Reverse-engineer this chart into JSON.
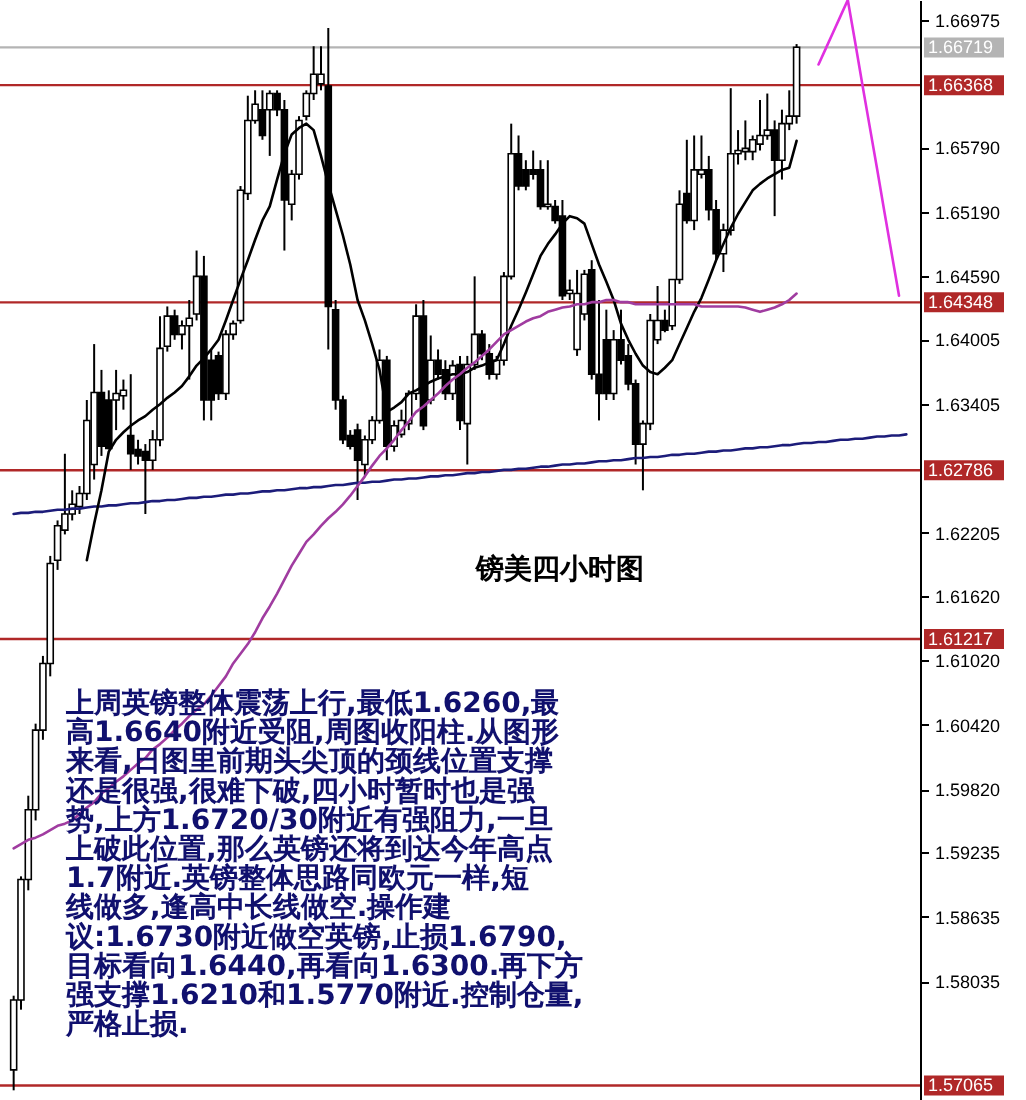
{
  "chart_data": {
    "type": "candlestick",
    "title": "镑美四小时图",
    "annotations": [
      "上周英镑整体震荡上行,最低1.6260,最",
      "高1.6640附近受阻,周图收阳柱.从图形",
      "来看,日图里前期头尖顶的颈线位置支撑",
      "还是很强,很难下破,四小时暂时也是强",
      "势,上方1.6720/30附近有强阻力,一旦",
      "上破此位置,那么英镑还将到达今年高点",
      "1.7附近.英镑整体思路同欧元一样,短",
      "线做多,逢高中长线做空.操作建",
      "议:1.6730附近做空英镑,止损1.6790,",
      "目标看向1.6440,再看向1.6300.再下方",
      "强支撑1.6210和1.5770附近.控制仓量,",
      "严格止损."
    ],
    "categories": [
      null,
      null,
      null,
      null,
      null,
      null,
      null,
      null,
      null,
      null,
      null,
      null,
      null,
      null,
      null,
      null,
      null,
      null,
      null,
      null,
      null,
      null,
      null,
      null,
      null,
      null,
      null,
      null,
      null,
      null,
      null,
      null,
      null,
      null,
      null,
      null,
      null,
      null,
      null,
      null,
      null,
      null,
      null,
      null,
      null,
      null,
      null,
      null,
      null,
      null,
      null,
      null,
      null,
      null,
      null,
      null,
      null,
      null,
      null,
      null,
      null,
      null,
      null,
      null,
      null,
      null,
      null,
      null,
      null,
      null,
      null,
      null,
      null,
      null,
      null,
      null,
      null,
      null,
      null,
      null,
      null,
      null,
      null,
      null,
      null,
      null,
      null,
      null,
      null,
      null,
      null,
      null,
      null,
      null,
      null,
      null,
      null,
      null,
      null,
      null,
      null,
      null,
      null,
      null,
      null,
      null,
      null,
      null,
      null,
      null,
      null,
      null,
      null,
      null,
      null,
      null,
      null,
      null,
      null,
      null,
      null,
      null,
      null
    ],
    "ohlc": [
      [
        1.5721,
        1.579,
        1.5702,
        1.5786
      ],
      [
        1.5786,
        1.5901,
        1.5777,
        1.5898
      ],
      [
        1.5898,
        1.5976,
        1.5888,
        1.5963
      ],
      [
        1.5963,
        1.6043,
        1.5953,
        1.6037
      ],
      [
        1.6037,
        1.6106,
        1.6028,
        1.6099
      ],
      [
        1.6099,
        1.6199,
        1.6087,
        1.6192
      ],
      [
        1.6195,
        1.6232,
        1.6186,
        1.6227
      ],
      [
        1.6223,
        1.6294,
        1.6219,
        1.6238
      ],
      [
        1.6238,
        1.626,
        1.6232,
        1.6247
      ],
      [
        1.6245,
        1.6264,
        1.6238,
        1.6257
      ],
      [
        1.6257,
        1.6344,
        1.6251,
        1.6325
      ],
      [
        1.6284,
        1.6396,
        1.627,
        1.6351
      ],
      [
        1.6351,
        1.6372,
        1.6292,
        1.6301
      ],
      [
        1.6344,
        1.6353,
        1.6298,
        1.6299
      ],
      [
        1.6344,
        1.6372,
        1.6316,
        1.635
      ],
      [
        1.6348,
        1.6363,
        1.6335,
        1.6353
      ],
      [
        1.6311,
        1.6368,
        1.6279,
        1.6294
      ],
      [
        1.6298,
        1.6307,
        1.6284,
        1.6292
      ],
      [
        1.6296,
        1.6303,
        1.6238,
        1.6288
      ],
      [
        1.6288,
        1.6316,
        1.6279,
        1.6307
      ],
      [
        1.6307,
        1.6422,
        1.6301,
        1.6392
      ],
      [
        1.6394,
        1.6431,
        1.6389,
        1.6422
      ],
      [
        1.6422,
        1.6428,
        1.64,
        1.6405
      ],
      [
        1.6405,
        1.6418,
        1.6391,
        1.6413
      ],
      [
        1.6413,
        1.6437,
        1.6363,
        1.642
      ],
      [
        1.6424,
        1.6483,
        1.6418,
        1.6459
      ],
      [
        1.6459,
        1.6478,
        1.6325,
        1.6344
      ],
      [
        1.6381,
        1.6391,
        1.6325,
        1.6344
      ],
      [
        1.6385,
        1.6389,
        1.6344,
        1.635
      ],
      [
        1.635,
        1.6409,
        1.6344,
        1.6405
      ],
      [
        1.6405,
        1.6418,
        1.64,
        1.6415
      ],
      [
        1.6418,
        1.6543,
        1.6415,
        1.6539
      ],
      [
        1.6536,
        1.6627,
        1.653,
        1.6604
      ],
      [
        1.6604,
        1.6632,
        1.6601,
        1.6619
      ],
      [
        1.6614,
        1.6632,
        1.6586,
        1.659
      ],
      [
        1.6614,
        1.6632,
        1.6571,
        1.6629
      ],
      [
        1.6629,
        1.6632,
        1.6608,
        1.6614
      ],
      [
        1.6614,
        1.6623,
        1.6483,
        1.653
      ],
      [
        1.6526,
        1.6558,
        1.6511,
        1.6554
      ],
      [
        1.6554,
        1.6608,
        1.6549,
        1.6604
      ],
      [
        1.6608,
        1.6632,
        1.6604,
        1.6629
      ],
      [
        1.6629,
        1.6673,
        1.6623,
        1.6647
      ],
      [
        1.6638,
        1.6673,
        1.6632,
        1.6647
      ],
      [
        1.6636,
        1.669,
        1.6391,
        1.6431
      ],
      [
        1.6428,
        1.6437,
        1.6335,
        1.6344
      ],
      [
        1.6344,
        1.6348,
        1.6303,
        1.6307
      ],
      [
        1.6311,
        1.6316,
        1.6298,
        1.6301
      ],
      [
        1.6316,
        1.6322,
        1.6251,
        1.6288
      ],
      [
        1.6284,
        1.6311,
        1.6273,
        1.6307
      ],
      [
        1.6307,
        1.6329,
        1.6303,
        1.6325
      ],
      [
        1.6325,
        1.6391,
        1.6322,
        1.6381
      ],
      [
        1.6381,
        1.6385,
        1.6288,
        1.6301
      ],
      [
        1.6301,
        1.6325,
        1.6296,
        1.632
      ],
      [
        1.6312,
        1.6335,
        1.6309,
        1.6325
      ],
      [
        1.6322,
        1.6353,
        1.6316,
        1.635
      ],
      [
        1.635,
        1.6433,
        1.6344,
        1.6422
      ],
      [
        1.6422,
        1.6437,
        1.6316,
        1.632
      ],
      [
        1.6344,
        1.6404,
        1.634,
        1.6381
      ],
      [
        1.6381,
        1.6391,
        1.6363,
        1.6368
      ],
      [
        1.6372,
        1.6381,
        1.6344,
        1.635
      ],
      [
        1.635,
        1.6381,
        1.6344,
        1.6376
      ],
      [
        1.6377,
        1.6385,
        1.6316,
        1.6325
      ],
      [
        1.6322,
        1.6385,
        1.6284,
        1.6377
      ],
      [
        1.6377,
        1.6459,
        1.6372,
        1.6405
      ],
      [
        1.6405,
        1.6409,
        1.6381,
        1.6387
      ],
      [
        1.6387,
        1.6396,
        1.6363,
        1.6368
      ],
      [
        1.6368,
        1.6385,
        1.6363,
        1.6381
      ],
      [
        1.6381,
        1.6463,
        1.6376,
        1.6459
      ],
      [
        1.6459,
        1.6601,
        1.6456,
        1.6573
      ],
      [
        1.6573,
        1.659,
        1.6539,
        1.6543
      ],
      [
        1.6558,
        1.6567,
        1.6539,
        1.6543
      ],
      [
        1.6558,
        1.6576,
        1.6549,
        1.6554
      ],
      [
        1.6558,
        1.6567,
        1.6521,
        1.6524
      ],
      [
        1.6524,
        1.6567,
        1.6521,
        1.6526
      ],
      [
        1.6524,
        1.653,
        1.6508,
        1.6511
      ],
      [
        1.6515,
        1.653,
        1.6437,
        1.6441
      ],
      [
        1.6443,
        1.6456,
        1.6437,
        1.6446
      ],
      [
        1.6391,
        1.6465,
        1.6385,
        1.6443
      ],
      [
        1.6424,
        1.6465,
        1.6418,
        1.6461
      ],
      [
        1.6465,
        1.6474,
        1.6363,
        1.6368
      ],
      [
        1.6368,
        1.6437,
        1.6325,
        1.635
      ],
      [
        1.64,
        1.6428,
        1.6344,
        1.635
      ],
      [
        1.635,
        1.6409,
        1.6344,
        1.64
      ],
      [
        1.64,
        1.6428,
        1.6377,
        1.6381
      ],
      [
        1.6385,
        1.6396,
        1.6353,
        1.6359
      ],
      [
        1.6359,
        1.6363,
        1.6284,
        1.6303
      ],
      [
        1.6303,
        1.6325,
        1.626,
        1.6322
      ],
      [
        1.6322,
        1.6424,
        1.6316,
        1.6418
      ],
      [
        1.64,
        1.645,
        1.6396,
        1.6418
      ],
      [
        1.6418,
        1.6428,
        1.6407,
        1.6409
      ],
      [
        1.6413,
        1.6456,
        1.6409,
        1.6456
      ],
      [
        1.6456,
        1.6539,
        1.6452,
        1.6526
      ],
      [
        1.6536,
        1.6586,
        1.6508,
        1.6511
      ],
      [
        1.6511,
        1.659,
        1.6502,
        1.6558
      ],
      [
        1.6554,
        1.659,
        1.655,
        1.6558
      ],
      [
        1.6558,
        1.6571,
        1.6511,
        1.6521
      ],
      [
        1.6521,
        1.653,
        1.6474,
        1.648
      ],
      [
        1.648,
        1.6508,
        1.6463,
        1.6502
      ],
      [
        1.6502,
        1.6634,
        1.6497,
        1.6573
      ],
      [
        1.6573,
        1.6595,
        1.6563,
        1.6576
      ],
      [
        1.6575,
        1.6604,
        1.6567,
        1.6578
      ],
      [
        1.6575,
        1.659,
        1.6567,
        1.6586
      ],
      [
        1.6582,
        1.6623,
        1.6576,
        1.659
      ],
      [
        1.659,
        1.6629,
        1.6586,
        1.6595
      ],
      [
        1.6595,
        1.6604,
        1.6515,
        1.6567
      ],
      [
        1.6567,
        1.6614,
        1.6549,
        1.6601
      ],
      [
        1.6601,
        1.6632,
        1.6595,
        1.6608
      ],
      [
        1.6608,
        1.6675,
        1.6601,
        1.6672
      ],
      null,
      null,
      null,
      null,
      null,
      null,
      null,
      null,
      null,
      null,
      null,
      null,
      null,
      null,
      null
    ],
    "series": [
      {
        "type": "line",
        "color": "#1c1c7a",
        "values": [
          1.6238,
          1.6239,
          1.6239,
          1.624,
          1.624,
          1.6241,
          1.6242,
          1.6242,
          1.6243,
          1.6243,
          1.6244,
          1.6245,
          1.6245,
          1.6246,
          1.6246,
          1.6247,
          1.6248,
          1.6248,
          1.6249,
          1.625,
          1.625,
          1.6251,
          1.6251,
          1.6252,
          1.6253,
          1.6253,
          1.6254,
          1.6254,
          1.6255,
          1.6256,
          1.6256,
          1.6257,
          1.6257,
          1.6258,
          1.6259,
          1.6259,
          1.626,
          1.626,
          1.6261,
          1.6262,
          1.6262,
          1.6263,
          1.6263,
          1.6264,
          1.6265,
          1.6265,
          1.6266,
          1.6267,
          1.6267,
          1.6268,
          1.6268,
          1.6269,
          1.627,
          1.627,
          1.6271,
          1.6271,
          1.6272,
          1.6273,
          1.6273,
          1.6274,
          1.6274,
          1.6275,
          1.6276,
          1.6276,
          1.6277,
          1.6277,
          1.6278,
          1.6279,
          1.6279,
          1.628,
          1.628,
          1.6281,
          1.6282,
          1.6282,
          1.6283,
          1.6284,
          1.6284,
          1.6285,
          1.6285,
          1.6286,
          1.6287,
          1.6287,
          1.6288,
          1.6288,
          1.6289,
          1.629,
          1.629,
          1.6291,
          1.6291,
          1.6292,
          1.6293,
          1.6293,
          1.6294,
          1.6294,
          1.6295,
          1.6296,
          1.6296,
          1.6297,
          1.6297,
          1.6298,
          1.6299,
          1.6299,
          1.63,
          1.63,
          1.6301,
          1.6302,
          1.6302,
          1.6303,
          1.6304,
          1.6304,
          1.6305,
          1.6305,
          1.6306,
          1.6307,
          1.6307,
          1.6308,
          1.6308,
          1.6309,
          1.631,
          1.631,
          1.6311,
          1.6311,
          1.6312
        ]
      },
      {
        "type": "line",
        "color": "#000000",
        "values": [
          null,
          null,
          null,
          null,
          null,
          null,
          null,
          null,
          null,
          null,
          1.6195,
          1.6229,
          1.626,
          1.6296,
          1.6307,
          1.6314,
          1.632,
          1.6325,
          1.6329,
          1.6335,
          1.634,
          1.6346,
          1.6351,
          1.6357,
          1.6366,
          1.6376,
          1.6383,
          1.6391,
          1.64,
          1.6418,
          1.6437,
          1.6456,
          1.6474,
          1.6493,
          1.6511,
          1.6524,
          1.6549,
          1.6573,
          1.6591,
          1.6597,
          1.6601,
          1.6595,
          1.6571,
          1.6545,
          1.6521,
          1.6497,
          1.647,
          1.6437,
          1.6418,
          1.6396,
          1.6372,
          1.6333,
          1.6337,
          1.6342,
          1.635,
          1.6353,
          1.6357,
          1.6361,
          1.6364,
          1.6366,
          1.6368,
          1.6368,
          1.637,
          1.6374,
          1.6376,
          1.6379,
          1.6381,
          1.6396,
          1.6413,
          1.6428,
          1.6444,
          1.6461,
          1.6478,
          1.6489,
          1.6498,
          1.6508,
          1.6515,
          1.6513,
          1.6508,
          1.6489,
          1.647,
          1.6454,
          1.6437,
          1.6415,
          1.64,
          1.6387,
          1.6376,
          1.637,
          1.6368,
          1.6374,
          1.6381,
          1.6396,
          1.6411,
          1.6426,
          1.6439,
          1.6456,
          1.6474,
          1.6489,
          1.6504,
          1.6517,
          1.6528,
          1.6539,
          1.6545,
          1.655,
          1.6554,
          1.6558,
          1.656,
          1.6585,
          null,
          null,
          null,
          null,
          null,
          null,
          null,
          null,
          null,
          null,
          null,
          null,
          null,
          null,
          null
        ]
      },
      {
        "type": "line",
        "color": "#a03ca0",
        "values": [
          1.5927,
          1.5931,
          1.5935,
          1.5937,
          1.594,
          1.5944,
          1.5948,
          1.595,
          1.5953,
          1.5959,
          1.5965,
          1.597,
          1.5978,
          1.5983,
          1.5989,
          1.5994,
          1.6,
          1.6006,
          1.6011,
          1.6019,
          1.6024,
          1.603,
          1.6037,
          1.6043,
          1.605,
          1.6056,
          1.6061,
          1.6069,
          1.6078,
          1.6087,
          1.6099,
          1.6108,
          1.6117,
          1.6128,
          1.6141,
          1.6152,
          1.6164,
          1.6177,
          1.619,
          1.6201,
          1.6212,
          1.6219,
          1.6227,
          1.6234,
          1.624,
          1.6247,
          1.6255,
          1.6264,
          1.6273,
          1.6283,
          1.6292,
          1.6299,
          1.6307,
          1.6316,
          1.6324,
          1.6333,
          1.6338,
          1.6344,
          1.635,
          1.6357,
          1.6363,
          1.6368,
          1.6374,
          1.6379,
          1.6385,
          1.6391,
          1.6398,
          1.6405,
          1.6409,
          1.6413,
          1.6417,
          1.642,
          1.6422,
          1.6426,
          1.6428,
          1.643,
          1.6431,
          1.6433,
          1.6433,
          1.6435,
          1.6435,
          1.6437,
          1.6437,
          1.6435,
          1.6435,
          1.6433,
          1.6433,
          1.6433,
          1.6433,
          1.6433,
          1.6433,
          1.6433,
          1.6433,
          1.6433,
          1.6431,
          1.6431,
          1.6431,
          1.6431,
          1.6431,
          1.6431,
          1.643,
          1.6428,
          1.6426,
          1.6428,
          1.643,
          1.6433,
          1.6437,
          1.6443,
          null,
          null,
          null,
          null,
          null,
          null,
          null,
          null,
          null,
          null,
          null,
          null,
          null,
          null,
          null
        ]
      },
      {
        "type": "line",
        "color": "#e030e0",
        "values": [
          null,
          null,
          null,
          null,
          null,
          null,
          null,
          null,
          null,
          null,
          null,
          null,
          null,
          null,
          null,
          null,
          null,
          null,
          null,
          null,
          null,
          null,
          null,
          null,
          null,
          null,
          null,
          null,
          null,
          null,
          null,
          null,
          null,
          null,
          null,
          null,
          null,
          null,
          null,
          null,
          null,
          null,
          null,
          null,
          null,
          null,
          null,
          null,
          null,
          null,
          null,
          null,
          null,
          null,
          null,
          null,
          null,
          null,
          null,
          null,
          null,
          null,
          null,
          null,
          null,
          null,
          null,
          null,
          null,
          null,
          null,
          null,
          null,
          null,
          null,
          null,
          null,
          null,
          null,
          null,
          null,
          null,
          null,
          null,
          null,
          null,
          null,
          null,
          null,
          null,
          null,
          null,
          null,
          null,
          null,
          null,
          null,
          null,
          null,
          null,
          null,
          null,
          null,
          null,
          null,
          null,
          null,
          null,
          null,
          null,
          1.6656,
          1.6671,
          1.6686,
          1.6701,
          1.6716,
          1.6677,
          1.6637,
          1.6598,
          1.6559,
          1.6519,
          1.648,
          1.6441,
          null
        ]
      }
    ],
    "ylim": [
      1.5693,
      1.6716
    ],
    "yticks": [
      1.66975,
      {
        "value": 1.6579,
        "label": "1.65790"
      },
      {
        "value": 1.6519,
        "label": "1.65190"
      },
      {
        "value": 1.6459,
        "label": "1.64590"
      },
      1.64005,
      1.63405,
      1.62205,
      {
        "value": 1.6162,
        "label": "1.61620"
      },
      {
        "value": 1.6102,
        "label": "1.61020"
      },
      {
        "value": 1.6042,
        "label": "1.60420"
      },
      {
        "value": 1.5982,
        "label": "1.59820"
      },
      1.59235,
      1.58635,
      1.58035
    ],
    "ref_lines": [
      {
        "axis": "y",
        "value": 1.66719,
        "label": "1.66719",
        "color": "#b4b4b4"
      },
      {
        "axis": "y",
        "value": 1.66368,
        "label": "1.66368",
        "color": "#b02828"
      },
      {
        "axis": "y",
        "value": 1.64348,
        "label": "1.64348",
        "color": "#b02828"
      },
      {
        "axis": "y",
        "value": 1.62786,
        "label": "1.62786",
        "color": "#b02828"
      },
      {
        "axis": "y",
        "value": 1.61217,
        "label": "1.61217",
        "color": "#b02828"
      },
      {
        "axis": "y",
        "value": 1.57065,
        "label": "1.57065",
        "color": "#b02828"
      }
    ],
    "tick_labels": "y"
  }
}
